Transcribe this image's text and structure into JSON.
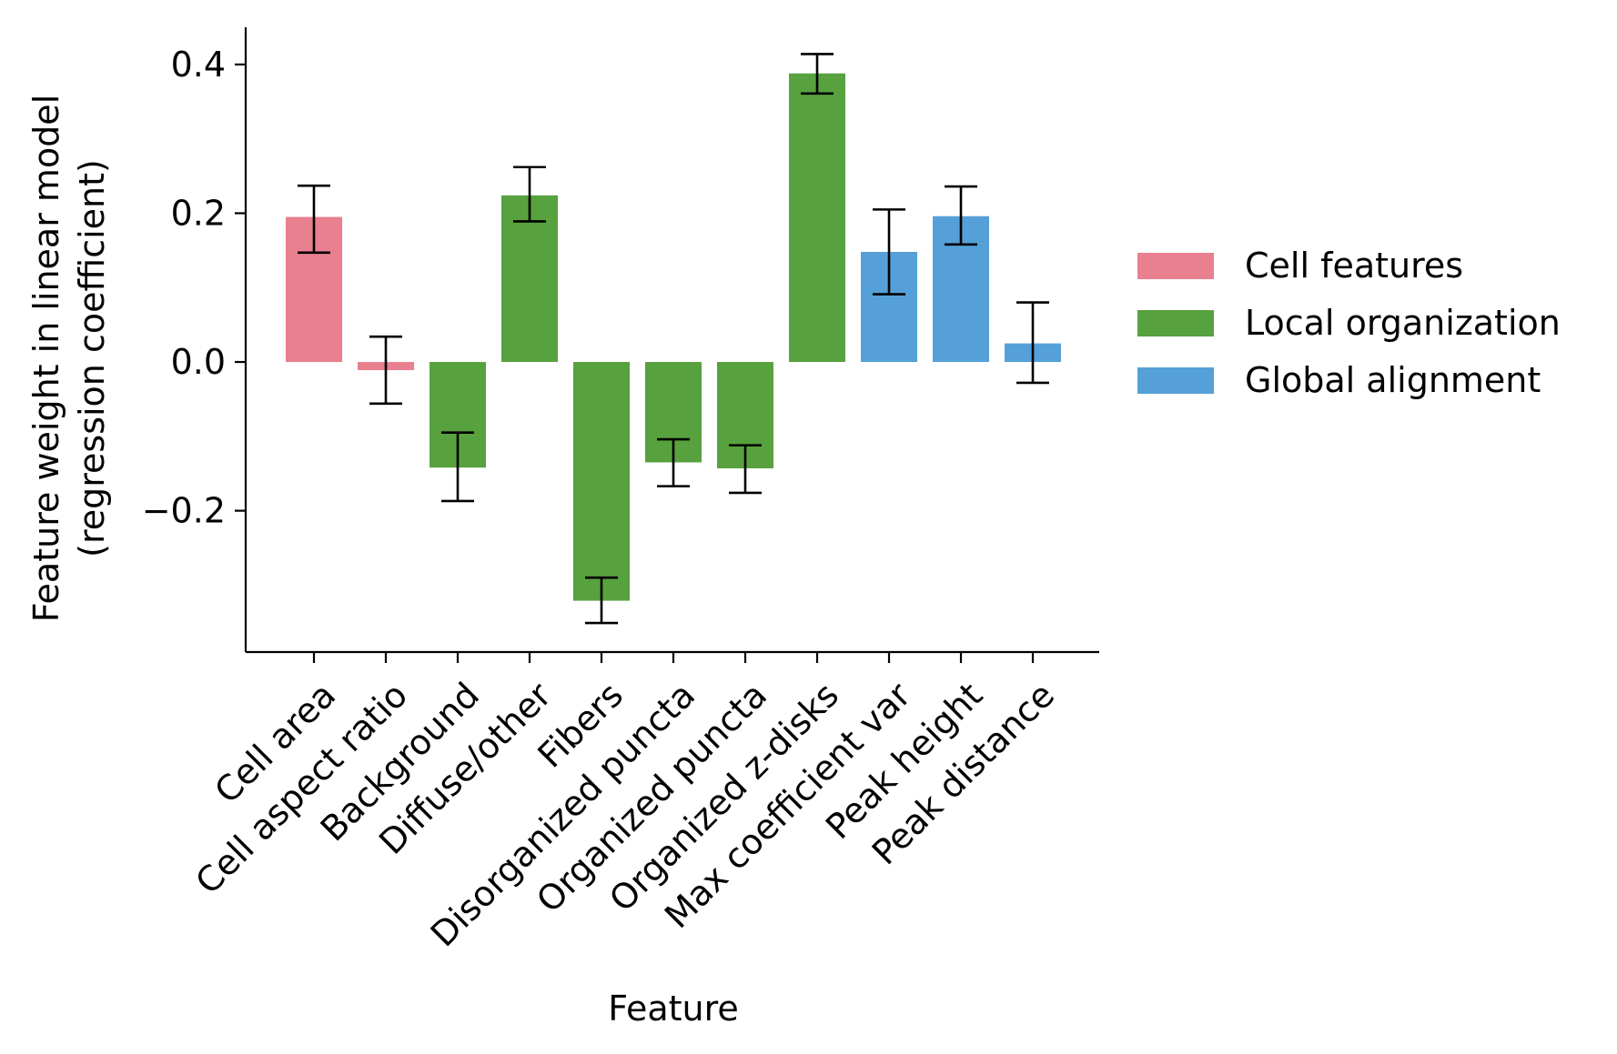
{
  "chart_data": {
    "type": "bar",
    "title": "",
    "xlabel": "Feature",
    "ylabel_line1": "Feature weight in linear model",
    "ylabel_line2": "(regression coefficient)",
    "ylim": [
      -0.39,
      0.45
    ],
    "yticks": [
      {
        "value": -0.2,
        "label": "−0.2"
      },
      {
        "value": 0.0,
        "label": "0.0"
      },
      {
        "value": 0.2,
        "label": "0.2"
      },
      {
        "value": 0.4,
        "label": "0.4"
      }
    ],
    "categories": [
      "Cell area",
      "Cell aspect ratio",
      "Background",
      "Diffuse/other",
      "Fibers",
      "Disorganized puncta",
      "Organized puncta",
      "Organized z-disks",
      "Max coefficient var",
      "Peak height",
      "Peak distance"
    ],
    "values": [
      0.195,
      -0.011,
      -0.142,
      0.224,
      -0.321,
      -0.135,
      -0.143,
      0.388,
      0.148,
      0.196,
      0.025
    ],
    "error_low": [
      0.147,
      -0.056,
      -0.187,
      0.189,
      -0.351,
      -0.167,
      -0.176,
      0.361,
      0.091,
      0.158,
      -0.028
    ],
    "error_high": [
      0.237,
      0.034,
      -0.095,
      0.262,
      -0.29,
      -0.104,
      -0.112,
      0.414,
      0.205,
      0.236,
      0.08
    ],
    "groups": [
      "Cell features",
      "Cell features",
      "Local organization",
      "Local organization",
      "Local organization",
      "Local organization",
      "Local organization",
      "Local organization",
      "Global alignment",
      "Global alignment",
      "Global alignment"
    ],
    "legend": [
      {
        "name": "Cell features",
        "color": "#e8808f"
      },
      {
        "name": "Local organization",
        "color": "#58a13f"
      },
      {
        "name": "Global alignment",
        "color": "#55a0d8"
      }
    ],
    "legend_position": "right",
    "grid": false
  }
}
